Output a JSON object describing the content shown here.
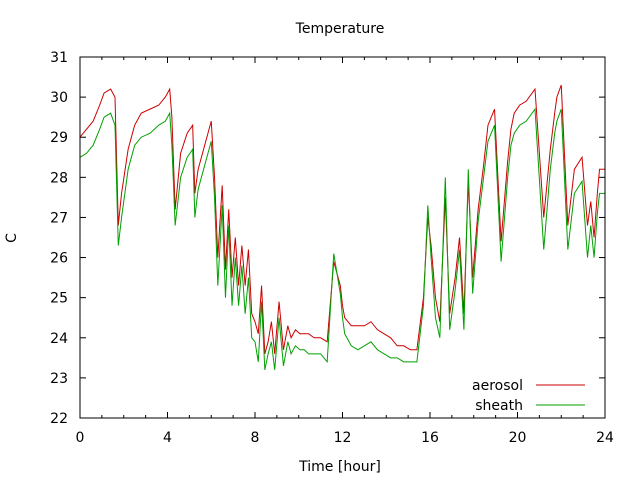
{
  "chart_data": {
    "type": "line",
    "title": "Temperature",
    "xlabel": "Time [hour]",
    "ylabel": "C",
    "xlim": [
      0,
      24
    ],
    "ylim": [
      22,
      31
    ],
    "xticks": [
      0,
      4,
      8,
      12,
      16,
      20,
      24
    ],
    "yticks": [
      22,
      23,
      24,
      25,
      26,
      27,
      28,
      29,
      30,
      31
    ],
    "grid": false,
    "legend_position": "bottom-right",
    "series": [
      {
        "name": "aerosol",
        "color": "#cc0000",
        "x": [
          0,
          0.3,
          0.6,
          0.9,
          1.1,
          1.4,
          1.6,
          1.75,
          1.9,
          2.2,
          2.5,
          2.8,
          3.2,
          3.6,
          3.9,
          4.1,
          4.2,
          4.35,
          4.6,
          4.9,
          5.15,
          5.25,
          5.4,
          5.7,
          6.0,
          6.15,
          6.3,
          6.5,
          6.65,
          6.8,
          6.95,
          7.1,
          7.25,
          7.4,
          7.55,
          7.7,
          7.85,
          8.0,
          8.15,
          8.3,
          8.45,
          8.6,
          8.75,
          8.9,
          9.1,
          9.3,
          9.5,
          9.65,
          9.85,
          10.05,
          10.25,
          10.45,
          10.7,
          11.0,
          11.3,
          11.6,
          11.9,
          12.0,
          12.1,
          12.4,
          12.7,
          13.0,
          13.3,
          13.6,
          13.9,
          14.2,
          14.5,
          14.8,
          15.1,
          15.4,
          15.7,
          15.9,
          16.05,
          16.25,
          16.45,
          16.7,
          16.9,
          17.15,
          17.35,
          17.55,
          17.75,
          17.95,
          18.2,
          18.45,
          18.65,
          18.95,
          19.25,
          19.55,
          19.7,
          19.85,
          20.1,
          20.4,
          20.8,
          21.2,
          21.5,
          21.7,
          21.8,
          22.0,
          22.3,
          22.6,
          22.95,
          23.2,
          23.35,
          23.5,
          23.65,
          23.75,
          24.0
        ],
        "values": [
          29.0,
          29.2,
          29.4,
          29.8,
          30.1,
          30.2,
          30.0,
          26.8,
          27.6,
          28.7,
          29.3,
          29.6,
          29.7,
          29.8,
          30.0,
          30.2,
          29.5,
          27.2,
          28.6,
          29.1,
          29.3,
          27.6,
          28.2,
          28.8,
          29.4,
          28.0,
          26.0,
          27.8,
          25.7,
          27.2,
          25.5,
          26.5,
          25.3,
          26.3,
          25.3,
          26.2,
          24.6,
          24.4,
          24.1,
          25.3,
          23.6,
          23.9,
          24.4,
          23.6,
          24.9,
          23.7,
          24.3,
          24.0,
          24.2,
          24.1,
          24.1,
          24.1,
          24.0,
          24.0,
          23.9,
          25.9,
          25.3,
          24.8,
          24.5,
          24.3,
          24.3,
          24.3,
          24.4,
          24.2,
          24.1,
          24.0,
          23.8,
          23.8,
          23.7,
          23.7,
          25.0,
          27.0,
          26.3,
          25.0,
          24.4,
          27.5,
          24.6,
          25.5,
          26.5,
          24.6,
          27.9,
          25.5,
          27.2,
          28.3,
          29.3,
          29.7,
          26.4,
          28.4,
          29.2,
          29.6,
          29.8,
          29.9,
          30.2,
          27.0,
          28.7,
          29.6,
          30.0,
          30.3,
          26.8,
          28.2,
          28.5,
          26.8,
          27.4,
          26.5,
          27.6,
          28.2,
          28.2
        ]
      },
      {
        "name": "sheath",
        "color": "#00a000",
        "x": [
          0,
          0.3,
          0.6,
          0.9,
          1.1,
          1.4,
          1.6,
          1.75,
          1.9,
          2.2,
          2.5,
          2.8,
          3.2,
          3.6,
          3.9,
          4.1,
          4.2,
          4.35,
          4.6,
          4.9,
          5.15,
          5.25,
          5.4,
          5.7,
          6.0,
          6.15,
          6.3,
          6.5,
          6.65,
          6.8,
          6.95,
          7.1,
          7.25,
          7.4,
          7.55,
          7.7,
          7.85,
          8.0,
          8.15,
          8.3,
          8.45,
          8.6,
          8.75,
          8.9,
          9.1,
          9.3,
          9.5,
          9.65,
          9.85,
          10.05,
          10.25,
          10.45,
          10.7,
          11.0,
          11.3,
          11.6,
          11.9,
          12.0,
          12.1,
          12.4,
          12.7,
          13.0,
          13.3,
          13.6,
          13.9,
          14.2,
          14.5,
          14.8,
          15.1,
          15.4,
          15.7,
          15.9,
          16.05,
          16.25,
          16.45,
          16.7,
          16.9,
          17.15,
          17.35,
          17.55,
          17.75,
          17.95,
          18.2,
          18.45,
          18.65,
          18.95,
          19.25,
          19.55,
          19.7,
          19.85,
          20.1,
          20.4,
          20.8,
          21.2,
          21.5,
          21.7,
          21.8,
          22.0,
          22.3,
          22.6,
          22.95,
          23.2,
          23.35,
          23.5,
          23.65,
          23.75,
          24.0
        ],
        "values": [
          28.5,
          28.6,
          28.8,
          29.2,
          29.5,
          29.6,
          29.3,
          26.3,
          27.0,
          28.2,
          28.8,
          29.0,
          29.1,
          29.3,
          29.4,
          29.6,
          28.8,
          26.8,
          28.0,
          28.5,
          28.7,
          27.0,
          27.7,
          28.3,
          28.9,
          27.5,
          25.3,
          27.3,
          25.0,
          26.8,
          24.8,
          26.0,
          24.8,
          25.8,
          24.6,
          25.5,
          24.0,
          23.9,
          23.4,
          24.9,
          23.2,
          23.6,
          23.9,
          23.2,
          24.5,
          23.3,
          23.9,
          23.6,
          23.8,
          23.7,
          23.7,
          23.6,
          23.6,
          23.6,
          23.4,
          26.1,
          25.1,
          24.5,
          24.1,
          23.8,
          23.7,
          23.8,
          23.9,
          23.7,
          23.6,
          23.5,
          23.5,
          23.4,
          23.4,
          23.4,
          24.8,
          27.3,
          26.0,
          24.5,
          24.0,
          28.0,
          24.2,
          25.2,
          26.2,
          24.2,
          28.2,
          25.1,
          26.9,
          28.0,
          28.9,
          29.3,
          25.9,
          28.0,
          28.8,
          29.1,
          29.3,
          29.4,
          29.7,
          26.2,
          28.2,
          29.1,
          29.4,
          29.7,
          26.2,
          27.6,
          27.9,
          26.0,
          26.8,
          26.0,
          27.1,
          27.6,
          27.6
        ]
      }
    ]
  }
}
